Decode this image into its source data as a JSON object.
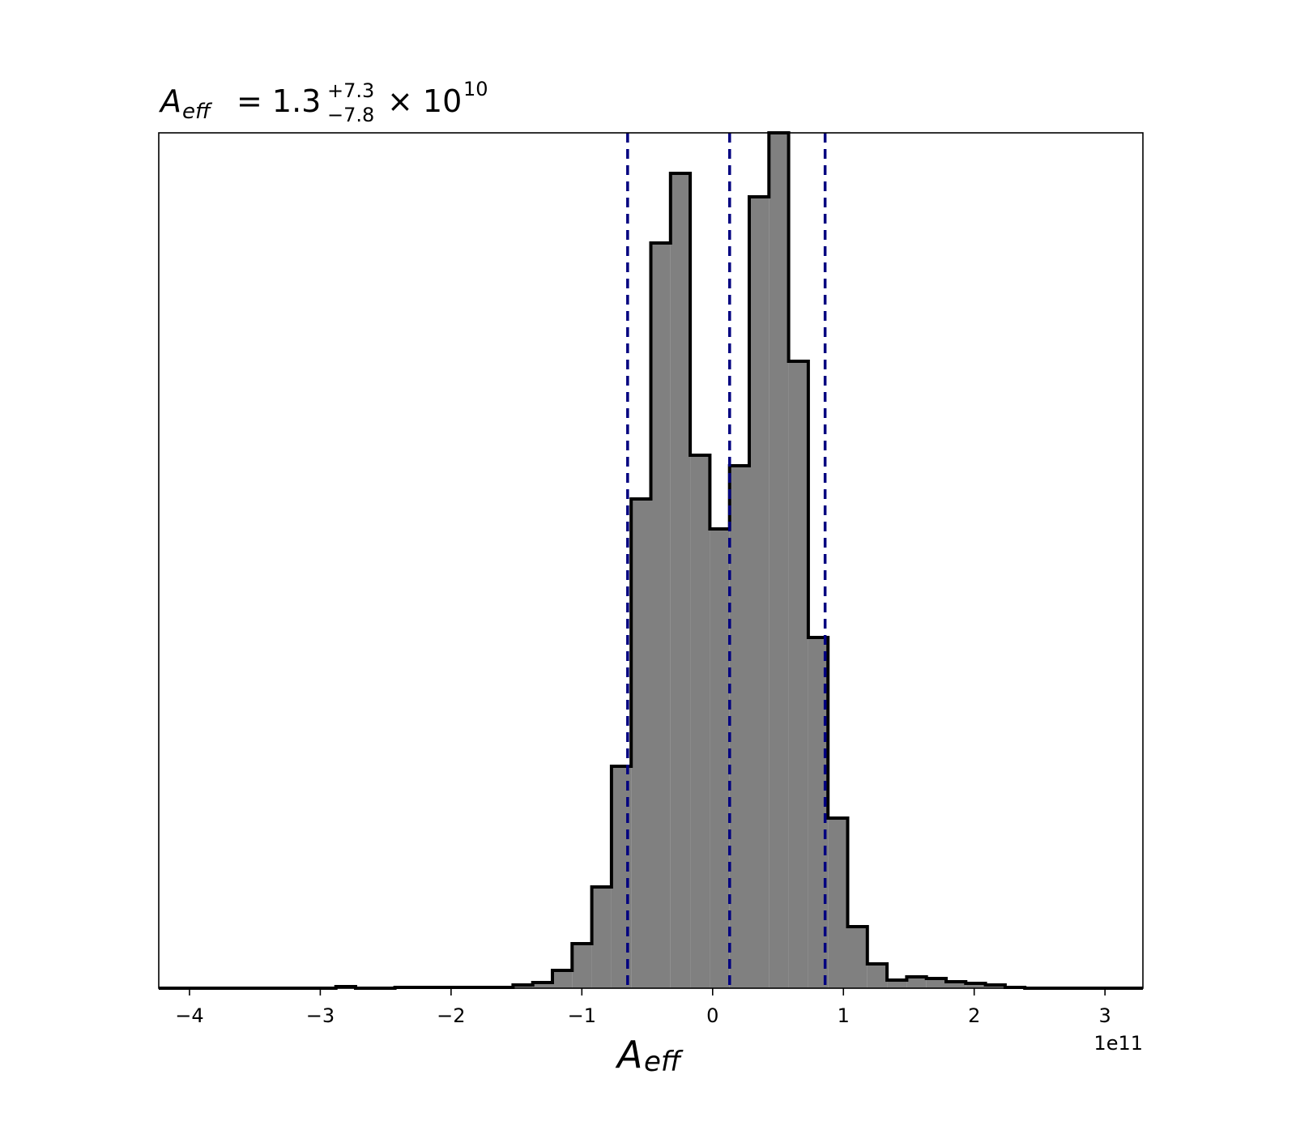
{
  "chart_data": {
    "type": "histogram",
    "title": {
      "symbol": "A",
      "subscript": "eff",
      "equals": "= 1.3",
      "upper": "+7.3",
      "lower": "−7.8",
      "times": "× 10",
      "exponent": "10"
    },
    "xlabel": {
      "symbol": "A",
      "subscript": "eff"
    },
    "x_offset_label": "1e11",
    "bins": [
      -4.235,
      -4.0845,
      -3.934,
      -3.7835,
      -3.633,
      -3.4825,
      -3.332,
      -3.1815,
      -3.031,
      -2.8805,
      -2.73,
      -2.5795,
      -2.429,
      -2.2785,
      -2.128,
      -1.9775,
      -1.827,
      -1.6765,
      -1.526,
      -1.3755,
      -1.225,
      -1.0745,
      -0.924,
      -0.7735,
      -0.623,
      -0.4725,
      -0.322,
      -0.1715,
      -0.021,
      0.1295,
      0.28,
      0.4305,
      0.581,
      0.7315,
      0.882,
      1.0325,
      1.183,
      1.3335,
      1.484,
      1.6345,
      1.785,
      1.9355,
      2.086,
      2.2365,
      2.387,
      2.5375,
      2.688,
      2.8385,
      2.989,
      3.1395,
      3.29
    ],
    "values": [
      0,
      0,
      0,
      0,
      0,
      0,
      0,
      0,
      0,
      2,
      0,
      0,
      1,
      1,
      1,
      1,
      1,
      1,
      4,
      7,
      22,
      55,
      125,
      274,
      604,
      920,
      1006,
      658,
      567,
      645,
      977,
      1056,
      774,
      433,
      210,
      76,
      30,
      10,
      14,
      12,
      8,
      6,
      4,
      1,
      0,
      0,
      0,
      0,
      0,
      0
    ],
    "color": "#808080",
    "edge_color": "#000000",
    "quantiles": [
      -0.65,
      0.13,
      0.86
    ],
    "quantile_color": "#000080",
    "xlim": [
      -4.235,
      3.29
    ],
    "ylim": [
      0,
      1056
    ],
    "xticks": [
      {
        "value": -4,
        "label": "−4"
      },
      {
        "value": -3,
        "label": "−3"
      },
      {
        "value": -2,
        "label": "−2"
      },
      {
        "value": -1,
        "label": "−1"
      },
      0,
      1,
      2,
      3
    ]
  }
}
